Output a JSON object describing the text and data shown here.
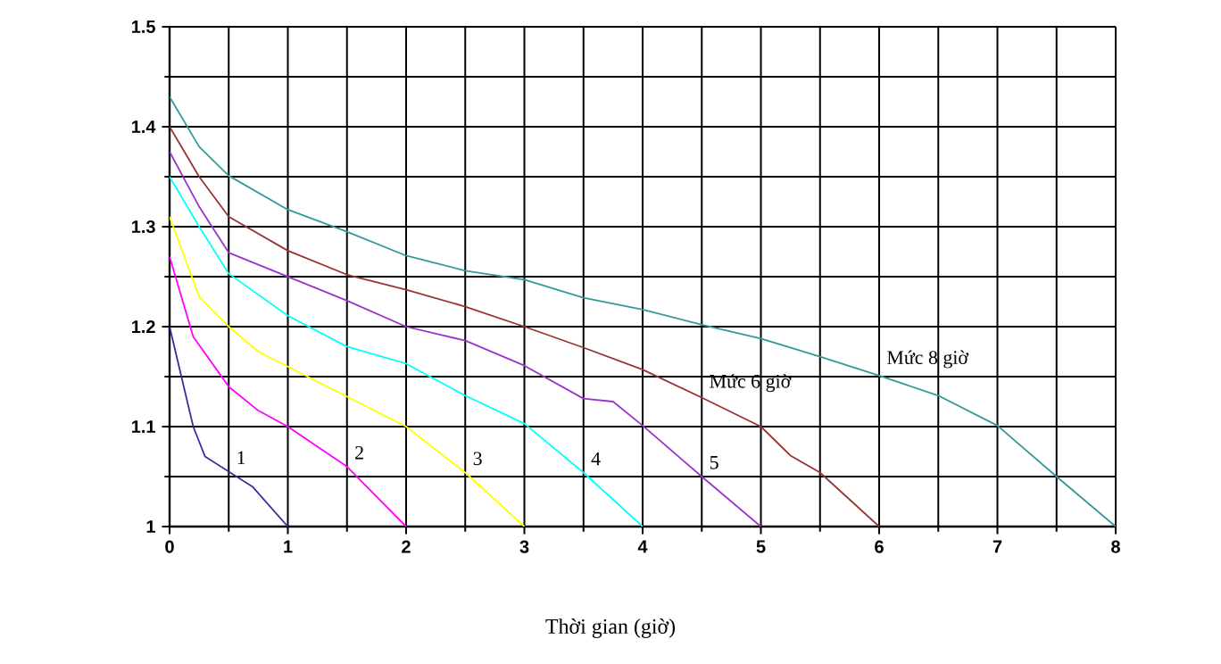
{
  "chart_data": {
    "type": "line",
    "xlabel": "Thời gian (giờ)",
    "xlim": [
      0,
      8
    ],
    "xticks": [
      0,
      1,
      2,
      3,
      4,
      5,
      6,
      7,
      8
    ],
    "ylim": [
      1,
      1.5
    ],
    "yticks": [
      1,
      1.1,
      1.2,
      1.3,
      1.4,
      1.5
    ],
    "grid": true,
    "marker": "none",
    "line_style": "solid",
    "series": [
      {
        "name": "1",
        "color": "#333399",
        "x": [
          0,
          0.1,
          0.2,
          0.3,
          0.5,
          0.7,
          1.0
        ],
        "values": [
          1.2,
          1.15,
          1.1,
          1.07,
          1.055,
          1.04,
          1.0
        ]
      },
      {
        "name": "2",
        "color": "#ff00ff",
        "x": [
          0,
          0.2,
          0.5,
          0.75,
          1.0,
          1.5,
          2.0
        ],
        "values": [
          1.27,
          1.19,
          1.14,
          1.116,
          1.1,
          1.06,
          1.0
        ]
      },
      {
        "name": "3",
        "color": "#ffff00",
        "x": [
          0,
          0.25,
          0.5,
          0.75,
          1.0,
          1.5,
          2.0,
          2.5,
          3.0
        ],
        "values": [
          1.31,
          1.23,
          1.2,
          1.175,
          1.16,
          1.13,
          1.1,
          1.054,
          1.0
        ]
      },
      {
        "name": "4",
        "color": "#00ffff",
        "x": [
          0,
          0.25,
          0.5,
          1.0,
          1.5,
          2.0,
          2.5,
          3.0,
          3.5,
          4.0
        ],
        "values": [
          1.35,
          1.3,
          1.253,
          1.211,
          1.18,
          1.163,
          1.131,
          1.103,
          1.054,
          1.0
        ]
      },
      {
        "name": "5",
        "color": "#9933cc",
        "x": [
          0,
          0.25,
          0.5,
          1.0,
          1.5,
          2.0,
          2.5,
          3.0,
          3.5,
          3.75,
          4.0,
          4.5,
          5.0
        ],
        "values": [
          1.375,
          1.32,
          1.274,
          1.25,
          1.226,
          1.2,
          1.186,
          1.161,
          1.128,
          1.125,
          1.101,
          1.05,
          1.0
        ]
      },
      {
        "name": "Mức 6 giờ",
        "color": "#993333",
        "x": [
          0,
          0.25,
          0.5,
          1.0,
          1.5,
          2.0,
          2.5,
          3.0,
          3.5,
          4.0,
          4.5,
          5.0,
          5.25,
          5.5,
          6.0
        ],
        "values": [
          1.4,
          1.35,
          1.31,
          1.276,
          1.252,
          1.237,
          1.22,
          1.2,
          1.179,
          1.157,
          1.129,
          1.1,
          1.071,
          1.054,
          1.0
        ]
      },
      {
        "name": "Mức 8 giờ",
        "color": "#339999",
        "x": [
          0,
          0.25,
          0.5,
          1.0,
          1.5,
          2.0,
          2.5,
          3.0,
          3.5,
          4.0,
          4.5,
          5.0,
          5.5,
          6.0,
          6.5,
          7.0,
          7.5,
          8.0
        ],
        "values": [
          1.43,
          1.38,
          1.351,
          1.317,
          1.295,
          1.271,
          1.256,
          1.247,
          1.229,
          1.217,
          1.202,
          1.188,
          1.17,
          1.151,
          1.131,
          1.101,
          1.05,
          1.0
        ]
      }
    ]
  }
}
